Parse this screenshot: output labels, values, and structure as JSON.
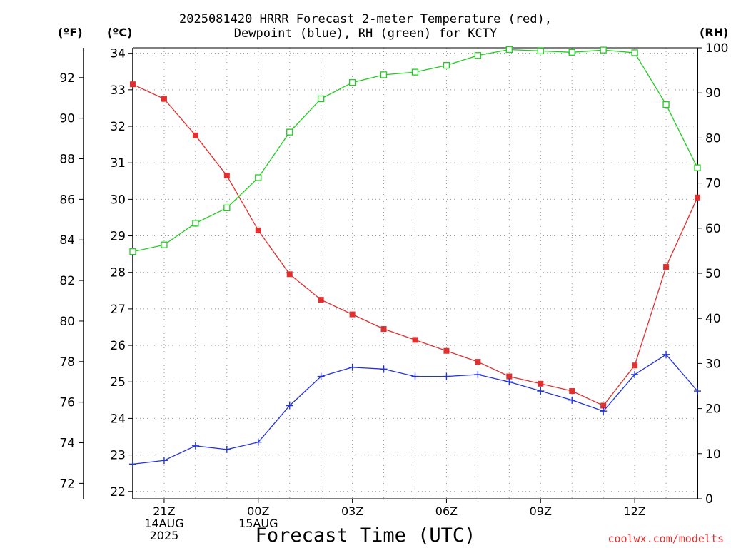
{
  "title_line1": "2025081420 HRRR Forecast 2-meter Temperature (red),",
  "title_line2": "Dewpoint (blue), RH (green) for KCTY",
  "label_f": "(ºF)",
  "label_c": "(ºC)",
  "label_rh": "(RH)",
  "credit": "coolwx.com/modelts",
  "colors": {
    "temperature": "#e03030",
    "dewpoint": "#2233dd",
    "rh": "#22cc22",
    "grid": "#999999"
  },
  "chart_data": {
    "type": "line",
    "xlabel": "Forecast Time (UTC)",
    "x": [
      20,
      21,
      22,
      23,
      24,
      25,
      26,
      27,
      28,
      29,
      30,
      31,
      32,
      33,
      34,
      35,
      36,
      37,
      38
    ],
    "xlim": [
      20,
      38
    ],
    "x_ticks": [
      {
        "x": 21,
        "lines": [
          "21Z",
          "14AUG",
          "2025"
        ]
      },
      {
        "x": 24,
        "lines": [
          "00Z",
          "15AUG"
        ]
      },
      {
        "x": 27,
        "lines": [
          "03Z"
        ]
      },
      {
        "x": 30,
        "lines": [
          "06Z"
        ]
      },
      {
        "x": 33,
        "lines": [
          "09Z"
        ]
      },
      {
        "x": 36,
        "lines": [
          "12Z"
        ]
      }
    ],
    "ylim_c": [
      21.8,
      34.15
    ],
    "yticks_c": [
      "22",
      "23",
      "24",
      "25",
      "26",
      "27",
      "28",
      "29",
      "30",
      "31",
      "32",
      "33",
      "34"
    ],
    "yticks_f": [
      "72",
      "74",
      "76",
      "78",
      "80",
      "82",
      "84",
      "86",
      "88",
      "90",
      "92"
    ],
    "ylim_rh": [
      0,
      100
    ],
    "yticks_rh": [
      "0",
      "10",
      "20",
      "30",
      "40",
      "50",
      "60",
      "70",
      "80",
      "90",
      "100"
    ],
    "grid": true,
    "series": [
      {
        "key": "temperature",
        "name": "Temperature",
        "marker": "square",
        "values": [
          33.15,
          32.75,
          31.75,
          30.65,
          29.15,
          27.95,
          27.25,
          26.85,
          26.45,
          26.15,
          25.85,
          25.55,
          25.15,
          24.95,
          24.75,
          24.35,
          25.45,
          28.15,
          30.05
        ]
      },
      {
        "key": "dewpoint",
        "name": "Dewpoint",
        "marker": "plus",
        "values": [
          22.75,
          22.85,
          23.25,
          23.15,
          23.35,
          24.35,
          25.15,
          25.4,
          25.35,
          25.15,
          25.15,
          25.2,
          25.0,
          24.75,
          24.5,
          24.2,
          25.2,
          25.75,
          24.75
        ]
      },
      {
        "key": "rh",
        "name": "RH",
        "marker": "open-square",
        "values": [
          54.8,
          56.3,
          61.1,
          64.5,
          71.2,
          81.3,
          88.7,
          92.3,
          94.0,
          94.6,
          96.1,
          98.3,
          99.6,
          99.3,
          99.0,
          99.5,
          98.9,
          87.4,
          73.4
        ]
      }
    ]
  }
}
